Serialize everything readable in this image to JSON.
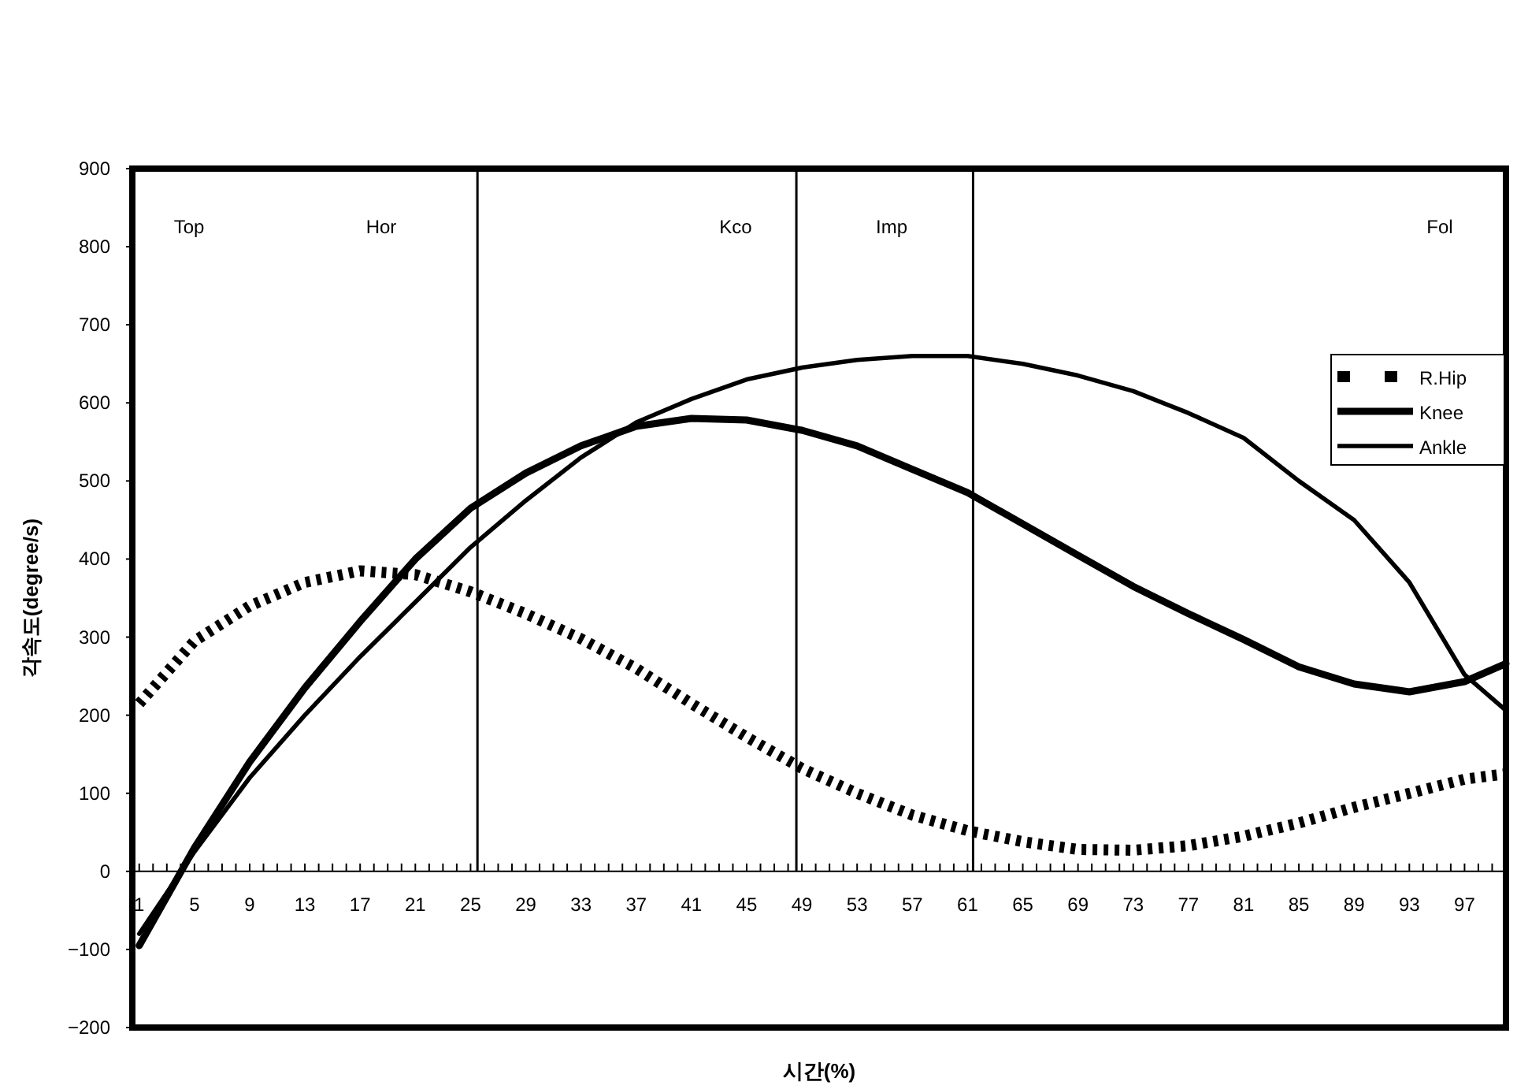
{
  "chart_data": {
    "type": "line",
    "xlabel": "시간(%)",
    "ylabel": "각속도(degree/s)",
    "xlim": [
      0.5,
      100
    ],
    "ylim": [
      -200,
      900
    ],
    "yticks": [
      {
        "value": -200,
        "label": "−200"
      },
      {
        "value": -100,
        "label": "−100"
      },
      0,
      100,
      200,
      300,
      400,
      500,
      600,
      700,
      800,
      900
    ],
    "xticks": [
      1,
      {
        "value": 2,
        "label": null
      },
      {
        "value": 3,
        "label": null
      },
      {
        "value": 4,
        "label": null
      },
      5,
      {
        "value": 6,
        "label": null
      },
      {
        "value": 7,
        "label": null
      },
      {
        "value": 8,
        "label": null
      },
      9,
      {
        "value": 10,
        "label": null
      },
      {
        "value": 11,
        "label": null
      },
      {
        "value": 12,
        "label": null
      },
      13,
      {
        "value": 14,
        "label": null
      },
      {
        "value": 15,
        "label": null
      },
      {
        "value": 16,
        "label": null
      },
      17,
      {
        "value": 18,
        "label": null
      },
      {
        "value": 19,
        "label": null
      },
      {
        "value": 20,
        "label": null
      },
      21,
      {
        "value": 22,
        "label": null
      },
      {
        "value": 23,
        "label": null
      },
      {
        "value": 24,
        "label": null
      },
      25,
      {
        "value": 26,
        "label": null
      },
      {
        "value": 27,
        "label": null
      },
      {
        "value": 28,
        "label": null
      },
      29,
      {
        "value": 30,
        "label": null
      },
      {
        "value": 31,
        "label": null
      },
      {
        "value": 32,
        "label": null
      },
      33,
      {
        "value": 34,
        "label": null
      },
      {
        "value": 35,
        "label": null
      },
      {
        "value": 36,
        "label": null
      },
      37,
      {
        "value": 38,
        "label": null
      },
      {
        "value": 39,
        "label": null
      },
      {
        "value": 40,
        "label": null
      },
      41,
      {
        "value": 42,
        "label": null
      },
      {
        "value": 43,
        "label": null
      },
      {
        "value": 44,
        "label": null
      },
      45,
      {
        "value": 46,
        "label": null
      },
      {
        "value": 47,
        "label": null
      },
      {
        "value": 48,
        "label": null
      },
      49,
      {
        "value": 50,
        "label": null
      },
      {
        "value": 51,
        "label": null
      },
      {
        "value": 52,
        "label": null
      },
      53,
      {
        "value": 54,
        "label": null
      },
      {
        "value": 55,
        "label": null
      },
      {
        "value": 56,
        "label": null
      },
      57,
      {
        "value": 58,
        "label": null
      },
      {
        "value": 59,
        "label": null
      },
      {
        "value": 60,
        "label": null
      },
      61,
      {
        "value": 62,
        "label": null
      },
      {
        "value": 63,
        "label": null
      },
      {
        "value": 64,
        "label": null
      },
      65,
      {
        "value": 66,
        "label": null
      },
      {
        "value": 67,
        "label": null
      },
      {
        "value": 68,
        "label": null
      },
      69,
      {
        "value": 70,
        "label": null
      },
      {
        "value": 71,
        "label": null
      },
      {
        "value": 72,
        "label": null
      },
      73,
      {
        "value": 74,
        "label": null
      },
      {
        "value": 75,
        "label": null
      },
      {
        "value": 76,
        "label": null
      },
      77,
      {
        "value": 78,
        "label": null
      },
      {
        "value": 79,
        "label": null
      },
      {
        "value": 80,
        "label": null
      },
      81,
      {
        "value": 82,
        "label": null
      },
      {
        "value": 83,
        "label": null
      },
      {
        "value": 84,
        "label": null
      },
      85,
      {
        "value": 86,
        "label": null
      },
      {
        "value": 87,
        "label": null
      },
      {
        "value": 88,
        "label": null
      },
      89,
      {
        "value": 90,
        "label": null
      },
      {
        "value": 91,
        "label": null
      },
      {
        "value": 92,
        "label": null
      },
      93,
      {
        "value": 94,
        "label": null
      },
      {
        "value": 95,
        "label": null
      },
      {
        "value": 96,
        "label": null
      },
      97,
      {
        "value": 98,
        "label": null
      },
      {
        "value": 99,
        "label": null
      },
      {
        "value": 100,
        "label": null
      }
    ],
    "x": [
      1,
      5,
      9,
      13,
      17,
      21,
      25,
      29,
      33,
      37,
      41,
      45,
      49,
      53,
      57,
      61,
      65,
      69,
      73,
      77,
      81,
      85,
      89,
      93,
      97,
      100
    ],
    "series": [
      {
        "name": "R.Hip",
        "color": "#000000",
        "line_style": "dotted",
        "values": [
          215,
          295,
          340,
          370,
          385,
          380,
          358,
          330,
          298,
          260,
          215,
          172,
          132,
          100,
          72,
          52,
          38,
          28,
          27,
          33,
          45,
          62,
          82,
          100,
          118,
          125
        ]
      },
      {
        "name": "Knee",
        "color": "#000000",
        "line_style": "solid",
        "values": [
          -95,
          30,
          140,
          235,
          320,
          400,
          465,
          510,
          545,
          570,
          580,
          578,
          565,
          545,
          515,
          485,
          445,
          405,
          365,
          330,
          297,
          262,
          240,
          230,
          243,
          266
        ]
      },
      {
        "name": "Ankle",
        "color": "#000000",
        "line_style": "solid",
        "values": [
          -80,
          25,
          120,
          200,
          275,
          345,
          415,
          475,
          530,
          575,
          605,
          630,
          645,
          655,
          660,
          660,
          650,
          635,
          615,
          587,
          555,
          500,
          450,
          370,
          252,
          206
        ]
      }
    ],
    "ref_lines": [
      {
        "axis": "x",
        "value": 25.5,
        "color": "#000000"
      },
      {
        "axis": "x",
        "value": 48.6,
        "color": "#000000"
      },
      {
        "axis": "x",
        "value": 61.4,
        "color": "#000000"
      }
    ],
    "annotations": [
      "Top",
      "Hor",
      "Kco",
      "Imp",
      "Fol"
    ],
    "legend": "right",
    "grid": false
  }
}
